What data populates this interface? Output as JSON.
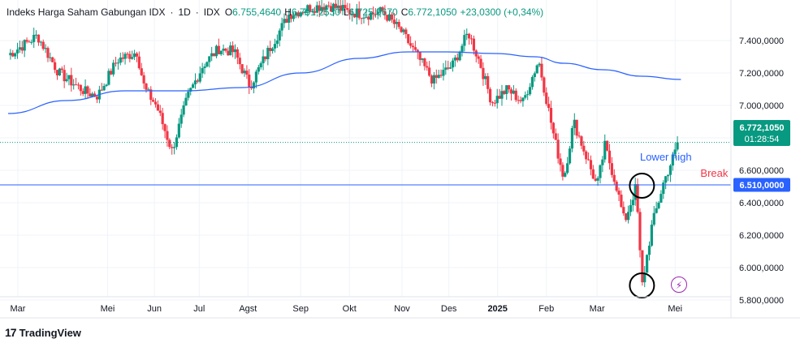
{
  "header": {
    "name": "Indeks Harga Saham Gabungan IDX",
    "interval": "1D",
    "exchange": "IDX",
    "open_label": "O",
    "open": "6.755,4640",
    "high_label": "H",
    "high": "6.791,2530",
    "low_label": "L",
    "low": "6.725,9670",
    "close_label": "C",
    "close": "6.772,1050",
    "change": "+23,0300 (+0,34%)",
    "separator": "·"
  },
  "price_tag": {
    "price": "6.772,1050",
    "countdown": "01:28:54"
  },
  "level_tag": {
    "price": "6.510,0000"
  },
  "brand": {
    "logo": "17",
    "name": "TradingView"
  },
  "chart_data": {
    "type": "candlestick",
    "y_ticks": [
      {
        "value": 7400000,
        "label": "7.400,0000"
      },
      {
        "value": 7200000,
        "label": "7.200,0000"
      },
      {
        "value": 7000000,
        "label": "7.000,0000"
      },
      {
        "value": 6800000,
        "label": "6.800,0000"
      },
      {
        "value": 6600000,
        "label": "6.600,0000"
      },
      {
        "value": 6400000,
        "label": "6.400,0000"
      },
      {
        "value": 6200000,
        "label": "6.200,0000"
      },
      {
        "value": 6000000,
        "label": "6.000,0000"
      },
      {
        "value": 5800000,
        "label": "5.800,0000"
      }
    ],
    "ylim": [
      5720000,
      7620000
    ],
    "x_ticks": [
      {
        "pos": 0.5,
        "label": "Mar"
      },
      {
        "pos": 5.1,
        "label": "Mei"
      },
      {
        "pos": 7.5,
        "label": "Jun"
      },
      {
        "pos": 9.8,
        "label": "Jul"
      },
      {
        "pos": 12.3,
        "label": "Agst"
      },
      {
        "pos": 15.0,
        "label": "Sep"
      },
      {
        "pos": 17.5,
        "label": "Okt"
      },
      {
        "pos": 20.2,
        "label": "Nov"
      },
      {
        "pos": 22.6,
        "label": "Des"
      },
      {
        "pos": 25.1,
        "label": "2025"
      },
      {
        "pos": 27.6,
        "label": "Feb"
      },
      {
        "pos": 30.2,
        "label": "Mar"
      },
      {
        "pos": 34.2,
        "label": "Mei"
      }
    ],
    "xlim": [
      0,
      40
    ],
    "anchors": [
      [
        0,
        7310000
      ],
      [
        1.5,
        7430000
      ],
      [
        2.6,
        7200000
      ],
      [
        4.0,
        7080000
      ],
      [
        4.6,
        7060000
      ],
      [
        5.6,
        7280000
      ],
      [
        6.6,
        7330000
      ],
      [
        7.0,
        7100000
      ],
      [
        7.6,
        7000000
      ],
      [
        8.4,
        6720000
      ],
      [
        9.2,
        7050000
      ],
      [
        10.0,
        7250000
      ],
      [
        10.8,
        7350000
      ],
      [
        11.6,
        7330000
      ],
      [
        12.4,
        7120000
      ],
      [
        13.4,
        7350000
      ],
      [
        14.4,
        7560000
      ],
      [
        15.4,
        7600000
      ],
      [
        16.4,
        7620000
      ],
      [
        17.4,
        7580000
      ],
      [
        18.4,
        7560000
      ],
      [
        19.2,
        7580000
      ],
      [
        20.2,
        7450000
      ],
      [
        21.0,
        7300000
      ],
      [
        21.8,
        7150000
      ],
      [
        22.8,
        7250000
      ],
      [
        23.6,
        7450000
      ],
      [
        24.2,
        7260000
      ],
      [
        24.8,
        7020000
      ],
      [
        25.6,
        7100000
      ],
      [
        26.4,
        7020000
      ],
      [
        27.2,
        7280000
      ],
      [
        28.0,
        6800000
      ],
      [
        28.5,
        6550000
      ],
      [
        29.0,
        6900000
      ],
      [
        29.6,
        6700000
      ],
      [
        30.2,
        6500000
      ],
      [
        30.6,
        6750000
      ],
      [
        31.2,
        6500000
      ],
      [
        31.6,
        6280000
      ],
      [
        32.2,
        6500000
      ],
      [
        32.5,
        5880000
      ],
      [
        33.0,
        6250000
      ],
      [
        33.6,
        6520000
      ],
      [
        34.0,
        6650000
      ],
      [
        34.4,
        6772105
      ]
    ],
    "ma_points": [
      [
        0,
        6950000
      ],
      [
        3,
        7030000
      ],
      [
        6,
        7090000
      ],
      [
        9,
        7090000
      ],
      [
        12,
        7110000
      ],
      [
        15,
        7200000
      ],
      [
        18,
        7290000
      ],
      [
        20.5,
        7330000
      ],
      [
        22.5,
        7330000
      ],
      [
        25,
        7320000
      ],
      [
        27,
        7300000
      ],
      [
        28.5,
        7260000
      ],
      [
        30.5,
        7220000
      ],
      [
        32.5,
        7180000
      ],
      [
        34.5,
        7160000
      ]
    ],
    "last_price": 6772105,
    "horizontal_level": 6510000,
    "annotations": [
      {
        "text": "Lower high",
        "x": 32.4,
        "y": 6660000,
        "color": "#2962ff"
      },
      {
        "text": "Break",
        "x": 35.5,
        "y": 6560000,
        "color": "#f23645"
      }
    ],
    "circles": [
      {
        "x": 32.5,
        "y": 6505000
      },
      {
        "x": 32.5,
        "y": 5890000
      }
    ],
    "colors": {
      "up": "#089981",
      "down": "#f23645",
      "ma": "#2962ff",
      "level": "#2962ff",
      "last": "#089981"
    }
  }
}
